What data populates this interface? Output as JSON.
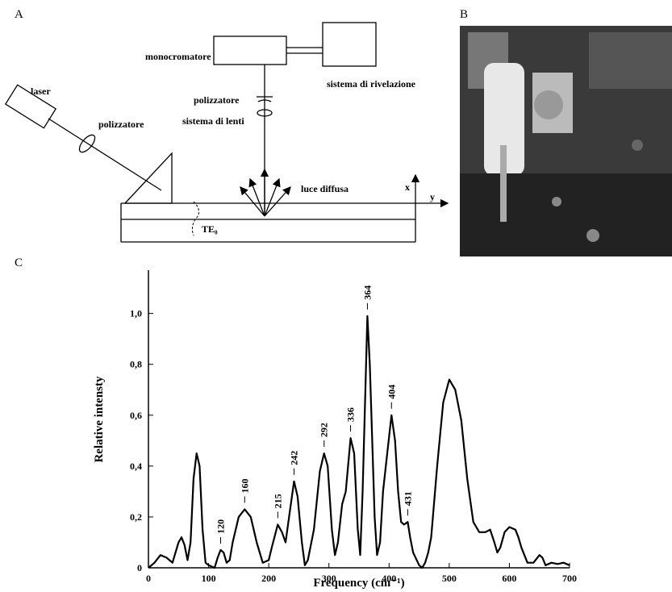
{
  "panels": [
    "A",
    "B",
    "C"
  ],
  "diagram": {
    "laser": "laser",
    "polarizer_1": "polizzatore",
    "monochromator": "monocromatore",
    "detection": "sistema di rivelazione",
    "polarizer_2": "polizzatore",
    "lenses": "sistema di lenti",
    "scattered_light": "luce diffusa",
    "axis_x": "x",
    "axis_y": "y",
    "mode": "TE₀"
  },
  "chart_data": {
    "type": "line",
    "x_label": "Frequency (cm⁻¹)",
    "y_label": "Relative intensty",
    "color": "#000000",
    "x": [
      0,
      10,
      20,
      30,
      40,
      50,
      55,
      60,
      65,
      70,
      75,
      80,
      85,
      90,
      95,
      100,
      110,
      115,
      120,
      125,
      130,
      135,
      140,
      150,
      160,
      170,
      180,
      190,
      200,
      205,
      215,
      222,
      228,
      235,
      242,
      248,
      255,
      260,
      265,
      275,
      285,
      292,
      298,
      305,
      310,
      315,
      322,
      328,
      336,
      342,
      348,
      352,
      356,
      360,
      364,
      368,
      372,
      376,
      380,
      385,
      390,
      397,
      404,
      410,
      415,
      420,
      425,
      431,
      435,
      440,
      450,
      455,
      460,
      465,
      470,
      480,
      490,
      500,
      510,
      520,
      530,
      540,
      550,
      560,
      568,
      575,
      580,
      585,
      592,
      600,
      610,
      615,
      620,
      630,
      640,
      650,
      655,
      660,
      670,
      680,
      690,
      700
    ],
    "values": [
      0,
      0.02,
      0.05,
      0.04,
      0.02,
      0.1,
      0.12,
      0.09,
      0.03,
      0.1,
      0.35,
      0.45,
      0.4,
      0.15,
      0.02,
      0.01,
      0,
      0.04,
      0.07,
      0.06,
      0.02,
      0.03,
      0.1,
      0.2,
      0.23,
      0.2,
      0.1,
      0.02,
      0.03,
      0.08,
      0.17,
      0.14,
      0.1,
      0.22,
      0.34,
      0.28,
      0.1,
      0.01,
      0.03,
      0.15,
      0.38,
      0.45,
      0.4,
      0.15,
      0.05,
      0.1,
      0.25,
      0.3,
      0.51,
      0.45,
      0.15,
      0.05,
      0.3,
      0.65,
      0.99,
      0.8,
      0.5,
      0.2,
      0.05,
      0.1,
      0.3,
      0.45,
      0.6,
      0.5,
      0.3,
      0.18,
      0.17,
      0.18,
      0.12,
      0.06,
      0.01,
      0,
      0.02,
      0.06,
      0.12,
      0.4,
      0.65,
      0.74,
      0.7,
      0.58,
      0.35,
      0.18,
      0.14,
      0.14,
      0.15,
      0.1,
      0.06,
      0.08,
      0.14,
      0.16,
      0.15,
      0.12,
      0.08,
      0.02,
      0.02,
      0.05,
      0.04,
      0.01,
      0.02,
      0.015,
      0.02,
      0.01
    ],
    "annotations": [
      120,
      160,
      215,
      242,
      292,
      336,
      364,
      404,
      431
    ],
    "xlim": [
      0,
      700
    ],
    "ylim": [
      0,
      1.17
    ],
    "xticks": [
      0,
      100,
      200,
      300,
      400,
      500,
      600,
      700
    ],
    "yticks": [
      0,
      {
        "value": 0.2,
        "label": "0,2"
      },
      {
        "value": 0.4,
        "label": "0,4"
      },
      {
        "value": 0.6,
        "label": "0,6"
      },
      {
        "value": 0.8,
        "label": "0,8"
      },
      {
        "value": 1,
        "label": "1,0"
      }
    ]
  }
}
